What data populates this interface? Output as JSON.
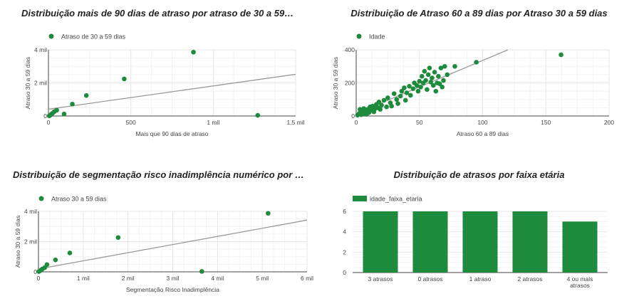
{
  "colors": {
    "series": "#1e8a3c",
    "trend": "#999999",
    "grid": "#e6e6e6",
    "axis": "#444444",
    "text": "#444444"
  },
  "chart_data": [
    {
      "type": "scatter",
      "title": "Distribuição mais de 90 dias de atraso por atraso de 30 a 59…",
      "legend": "Atraso de 30 a 59 dias",
      "legend_position": "top-left",
      "xlabel": "Mais que 90 dias de atraso",
      "ylabel": "Atraso 30 a 59 dias",
      "xlim": [
        0,
        1500
      ],
      "ylim": [
        0,
        4000
      ],
      "xticks": [
        0,
        500,
        1000,
        1500
      ],
      "xtick_labels": [
        "0",
        "500",
        "1 mil",
        "1,5 mil"
      ],
      "yticks": [
        0,
        2000,
        4000
      ],
      "ytick_labels": [
        "0",
        "2 mil",
        "4 mil"
      ],
      "grid": true,
      "trendline": [
        [
          0,
          410
        ],
        [
          1500,
          2520
        ]
      ],
      "points": [
        [
          5,
          10
        ],
        [
          12,
          60
        ],
        [
          18,
          110
        ],
        [
          25,
          170
        ],
        [
          35,
          260
        ],
        [
          50,
          350
        ],
        [
          95,
          120
        ],
        [
          145,
          720
        ],
        [
          230,
          1240
        ],
        [
          460,
          2240
        ],
        [
          880,
          3860
        ],
        [
          1270,
          40
        ]
      ]
    },
    {
      "type": "scatter",
      "title": "Distribuição de Atraso 60 a 89 dias por Atraso 30 a 59 dias",
      "legend": "Idade",
      "legend_position": "top-left",
      "xlabel": "Atraso 60 a 89 dias",
      "ylabel": "Atraso 30 a 59 dias",
      "xlim": [
        0,
        200
      ],
      "ylim": [
        0,
        400
      ],
      "xticks": [
        0,
        50,
        100,
        150,
        200
      ],
      "xtick_labels": [
        "0",
        "50",
        "100",
        "150",
        "200"
      ],
      "yticks": [
        0,
        200,
        400
      ],
      "ytick_labels": [
        "0",
        "200",
        "400"
      ],
      "grid": true,
      "trendline": [
        [
          0,
          15
        ],
        [
          120,
          400
        ]
      ],
      "points": [
        [
          1,
          5
        ],
        [
          2,
          12
        ],
        [
          3,
          20
        ],
        [
          3,
          40
        ],
        [
          4,
          8
        ],
        [
          5,
          30
        ],
        [
          6,
          15
        ],
        [
          6,
          45
        ],
        [
          7,
          25
        ],
        [
          8,
          10
        ],
        [
          9,
          40
        ],
        [
          10,
          20
        ],
        [
          11,
          55
        ],
        [
          12,
          35
        ],
        [
          13,
          60
        ],
        [
          14,
          25
        ],
        [
          15,
          45
        ],
        [
          16,
          70
        ],
        [
          17,
          50
        ],
        [
          18,
          85
        ],
        [
          19,
          40
        ],
        [
          20,
          65
        ],
        [
          22,
          95
        ],
        [
          24,
          55
        ],
        [
          25,
          110
        ],
        [
          27,
          80
        ],
        [
          28,
          60
        ],
        [
          30,
          135
        ],
        [
          32,
          100
        ],
        [
          33,
          75
        ],
        [
          35,
          120
        ],
        [
          36,
          150
        ],
        [
          38,
          170
        ],
        [
          39,
          95
        ],
        [
          40,
          140
        ],
        [
          42,
          180
        ],
        [
          43,
          125
        ],
        [
          45,
          165
        ],
        [
          46,
          200
        ],
        [
          48,
          185
        ],
        [
          49,
          150
        ],
        [
          50,
          210
        ],
        [
          51,
          175
        ],
        [
          52,
          240
        ],
        [
          53,
          200
        ],
        [
          54,
          270
        ],
        [
          55,
          215
        ],
        [
          56,
          160
        ],
        [
          57,
          250
        ],
        [
          58,
          290
        ],
        [
          59,
          205
        ],
        [
          60,
          230
        ],
        [
          61,
          185
        ],
        [
          62,
          265
        ],
        [
          63,
          150
        ],
        [
          64,
          200
        ],
        [
          65,
          240
        ],
        [
          66,
          195
        ],
        [
          67,
          290
        ],
        [
          68,
          175
        ],
        [
          69,
          215
        ],
        [
          70,
          300
        ],
        [
          72,
          250
        ],
        [
          78,
          300
        ],
        [
          95,
          325
        ],
        [
          162,
          370
        ]
      ]
    },
    {
      "type": "scatter",
      "title": "Distribuição de segmentação risco inadimplência numérico por …",
      "legend": "Atraso 30 a 59 dias",
      "legend_position": "top-left",
      "xlabel": "Segmentação Risco Inadimplência",
      "ylabel": "Atraso 30 a 59 dias",
      "xlim": [
        0,
        6000
      ],
      "ylim": [
        0,
        4000
      ],
      "xticks": [
        0,
        1000,
        2000,
        3000,
        4000,
        5000,
        6000
      ],
      "xtick_labels": [
        "0",
        "1 mil",
        "2 mil",
        "3 mil",
        "4 mil",
        "5 mil",
        "6 mil"
      ],
      "yticks": [
        0,
        2000,
        4000
      ],
      "ytick_labels": [
        "0",
        "2 mil",
        "4 mil"
      ],
      "grid": true,
      "trendline": [
        [
          0,
          190
        ],
        [
          6000,
          3420
        ]
      ],
      "points": [
        [
          10,
          20
        ],
        [
          30,
          70
        ],
        [
          60,
          120
        ],
        [
          90,
          200
        ],
        [
          140,
          280
        ],
        [
          190,
          480
        ],
        [
          380,
          790
        ],
        [
          700,
          1250
        ],
        [
          1780,
          2270
        ],
        [
          3650,
          30
        ],
        [
          5130,
          3870
        ]
      ]
    },
    {
      "type": "bar",
      "title": "Distribuição de atrasos por faixa etária",
      "legend": "idade_faixa_etaria",
      "legend_position": "top-left",
      "categories": [
        "3 atrasos",
        "0 atrasos",
        "1 atraso",
        "2 atrasos",
        "4 ou mais atrasos"
      ],
      "category_lines": [
        [
          "3 atrasos"
        ],
        [
          "0 atrasos"
        ],
        [
          "1 atraso"
        ],
        [
          "2 atrasos"
        ],
        [
          "4 ou mais",
          "atrasos"
        ]
      ],
      "values": [
        6,
        6,
        6,
        6,
        5
      ],
      "ylim": [
        0,
        6
      ],
      "yticks": [
        0,
        2,
        4,
        6
      ],
      "ytick_labels": [
        "0",
        "2",
        "4",
        "6"
      ],
      "grid": true
    }
  ]
}
